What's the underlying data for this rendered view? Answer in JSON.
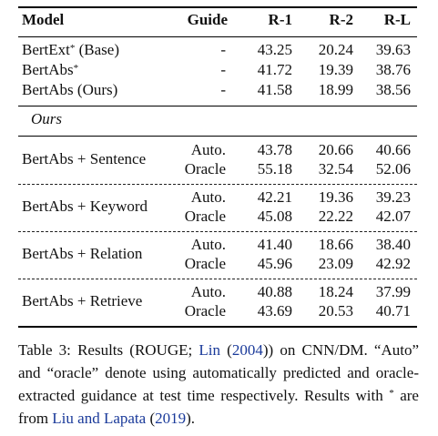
{
  "table": {
    "headers": {
      "model": "Model",
      "guide": "Guide",
      "r1": "R-1",
      "r2": "R-2",
      "rl": "R-L"
    },
    "baseline_rows": [
      {
        "model": "BertExt",
        "sup": "*",
        "suffix": " (Base)",
        "guide": "-",
        "r1": "43.25",
        "r2": "20.24",
        "rl": "39.63"
      },
      {
        "model": "BertAbs",
        "sup": "*",
        "suffix": "",
        "guide": "-",
        "r1": "41.72",
        "r2": "19.39",
        "rl": "38.76"
      },
      {
        "model": "BertAbs (Ours)",
        "sup": "",
        "suffix": "",
        "guide": "-",
        "r1": "41.58",
        "r2": "18.99",
        "rl": "38.56"
      }
    ],
    "section_label": "Ours",
    "groups": [
      {
        "model": "BertAbs + Sentence",
        "rows": [
          {
            "guide": "Auto.",
            "r1": "43.78",
            "r2": "20.66",
            "rl": "40.66"
          },
          {
            "guide": "Oracle",
            "r1": "55.18",
            "r2": "32.54",
            "rl": "52.06"
          }
        ]
      },
      {
        "model": "BertAbs + Keyword",
        "rows": [
          {
            "guide": "Auto.",
            "r1": "42.21",
            "r2": "19.36",
            "rl": "39.23"
          },
          {
            "guide": "Oracle",
            "r1": "45.08",
            "r2": "22.22",
            "rl": "42.07"
          }
        ]
      },
      {
        "model": "BertAbs + Relation",
        "rows": [
          {
            "guide": "Auto.",
            "r1": "41.40",
            "r2": "18.66",
            "rl": "38.40"
          },
          {
            "guide": "Oracle",
            "r1": "45.96",
            "r2": "23.09",
            "rl": "42.92"
          }
        ]
      },
      {
        "model": "BertAbs + Retrieve",
        "rows": [
          {
            "guide": "Auto.",
            "r1": "40.88",
            "r2": "18.24",
            "rl": "37.99"
          },
          {
            "guide": "Oracle",
            "r1": "43.69",
            "r2": "20.53",
            "rl": "40.71"
          }
        ]
      }
    ]
  },
  "caption": {
    "p1": "Table 3:  Results (ROUGE; ",
    "cite1_author": "Lin",
    "p2": " (",
    "cite1_year": "2004",
    "p3": ")) on CNN/DM. “Auto” and “oracle” denote using automatically predicted and oracle-extracted guidance at test time respectively. Results with ",
    "p3_star": "*",
    "p4": " are from ",
    "cite2_author": "Liu and Lapata",
    "p5": " (",
    "cite2_year": "2019",
    "p6": ")."
  },
  "colors": {
    "link": "#1a3a9a",
    "text": "#111111"
  }
}
